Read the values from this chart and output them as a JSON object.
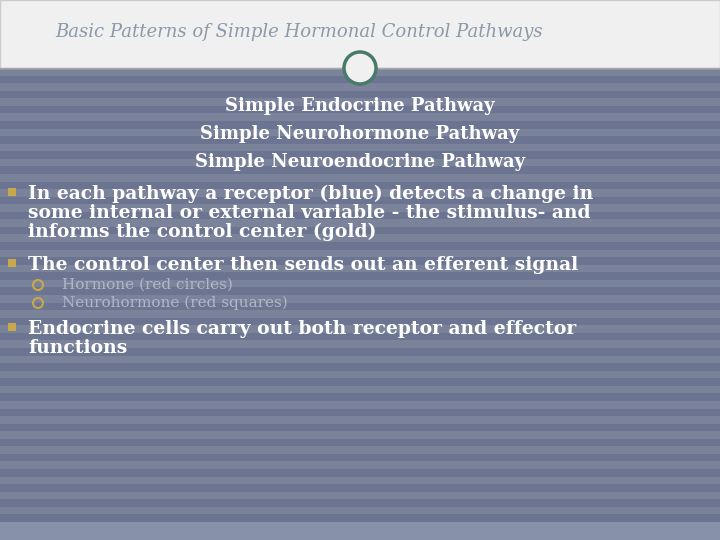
{
  "title": "Basic Patterns of Simple Hormonal Control Pathways",
  "title_color": "#8a9aaa",
  "title_fontsize": 13,
  "title_bg": "#f0f0f0",
  "body_bg": "#6b7491",
  "stripe_color": "#7a8399",
  "centered_lines": [
    "Simple Endocrine Pathway",
    "Simple Neurohormone Pathway",
    "Simple Neuroendocrine Pathway"
  ],
  "centered_color": "#ffffff",
  "centered_fontsize": 13,
  "bullet_color": "#c8a84b",
  "bullet1_text_line1": "In each pathway a receptor (blue) detects a change in",
  "bullet1_text_line2": "some internal or external variable - the stimulus- and",
  "bullet1_text_line3": "informs the control center (gold)",
  "bullet2_text": "The control center then sends out an efferent signal",
  "sub_bullet1": "Hormone (red circles)",
  "sub_bullet2": "Neurohormone (red squares)",
  "bullet3_text_line1": "Endocrine cells carry out both receptor and effector",
  "bullet3_text_line2": "functions",
  "body_text_color": "#ffffff",
  "body_text_fontsize": 13.5,
  "sub_text_color": "#b0b8c8",
  "sub_text_fontsize": 11,
  "circle_edge_color": "#4a7a6a",
  "circle_face_color": "#f0f0f0",
  "divider_color": "#aaaaaa",
  "title_bar_height": 68,
  "bottom_bar_height": 18,
  "fig_width": 7.2,
  "fig_height": 5.4,
  "dpi": 100
}
